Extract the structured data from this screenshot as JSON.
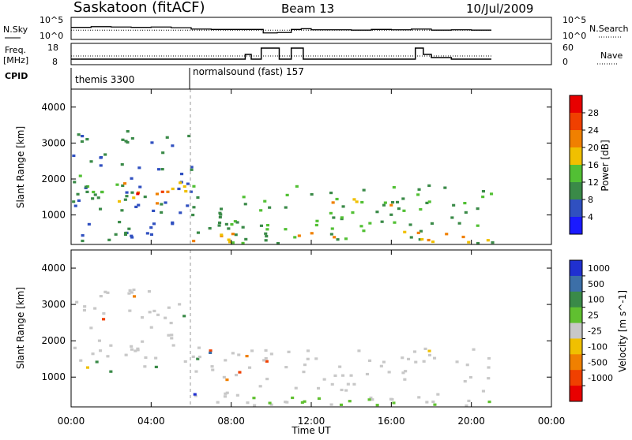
{
  "header": {
    "station": "Saskatoon (fitACF)",
    "beam": "Beam 13",
    "date": "10/Jul/2009"
  },
  "strips": {
    "nsky_label": "N.Sky",
    "nsky_ticks": [
      "10^5",
      "10^0"
    ],
    "nsearch_label": "N.Search",
    "freq_label_1": "Freq.",
    "freq_label_2": "[MHz]",
    "freq_ticks": [
      "18",
      "8"
    ],
    "nave_ticks": [
      "60",
      "0"
    ],
    "nave_label": "Nave",
    "cpid_label": "CPID",
    "cpid_segments": [
      {
        "start_hour": 0,
        "text": "themis 3300"
      },
      {
        "start_hour": 6,
        "text": "normalsound (fast) 157"
      }
    ]
  },
  "axes": {
    "ylabel": "Slant Range [km]",
    "xlabel": "Time UT",
    "y_ticks": [
      "1000",
      "2000",
      "3000",
      "4000"
    ],
    "x_ticks": [
      "00:00",
      "04:00",
      "08:00",
      "12:00",
      "16:00",
      "20:00",
      "00:00"
    ]
  },
  "colorbars": {
    "power": {
      "label": "Power [dB]",
      "ticks": [
        "4",
        "8",
        "12",
        "16",
        "20",
        "24",
        "28"
      ],
      "colors": [
        "#1a1aff",
        "#3050c0",
        "#3a8a48",
        "#52c034",
        "#f0c000",
        "#f08000",
        "#f04000",
        "#e80000"
      ]
    },
    "velocity": {
      "label": "Velocity [m s^-1]",
      "ticks": [
        "1000",
        "500",
        "100",
        "25",
        "-25",
        "-100",
        "-500",
        "-1000"
      ],
      "colors": [
        "#2030d0",
        "#3c6fa8",
        "#3a8a48",
        "#60c030",
        "#c8c8c8",
        "#f0c000",
        "#f08000",
        "#f04000",
        "#e80000"
      ]
    }
  },
  "chart_data": [
    {
      "type": "line",
      "title": "N.Sky / N.Search",
      "xlim": [
        0,
        24
      ],
      "ylim_log10": [
        0,
        5
      ],
      "series": [
        {
          "name": "N.Sky",
          "x": [
            0,
            1,
            2,
            3,
            4,
            5,
            6,
            7,
            8,
            9,
            9.6,
            10.3,
            11,
            11.5,
            12,
            13,
            14,
            15,
            16,
            17,
            18,
            19,
            20,
            21
          ],
          "y_log10": [
            2.8,
            3.0,
            2.9,
            2.8,
            2.9,
            2.7,
            2.3,
            2.2,
            2.2,
            2.2,
            1.2,
            1.3,
            2.2,
            2.4,
            2.1,
            2.1,
            2.0,
            2.2,
            2.1,
            2.3,
            2.0,
            2.1,
            2.0,
            2.0
          ]
        },
        {
          "name": "N.Search",
          "x": [
            0,
            21
          ],
          "y_log10": [
            2.0,
            2.0
          ]
        }
      ]
    },
    {
      "type": "line",
      "title": "Freq / Nave",
      "xlim": [
        0,
        24
      ],
      "ylim": [
        8,
        18
      ],
      "series": [
        {
          "name": "Freq.",
          "x": [
            0,
            8.3,
            8.7,
            9.0,
            9.5,
            10.1,
            10.4,
            11.0,
            11.6,
            17.0,
            17.2,
            17.6,
            18.0,
            19.0,
            21.0
          ],
          "y": [
            10,
            10,
            13,
            10,
            17,
            17,
            10,
            17,
            10,
            10,
            17,
            13,
            11,
            10,
            10
          ]
        },
        {
          "name": "Nave",
          "x": [
            0,
            21
          ],
          "y": [
            12,
            12
          ]
        }
      ]
    },
    {
      "type": "heatmap",
      "title": "Power",
      "xlabel": "Time UT",
      "ylabel": "Slant Range [km]",
      "xlim": [
        0,
        24
      ],
      "ylim": [
        180,
        4500
      ],
      "colorbar": "Power [dB]",
      "regions": [
        {
          "t0": 0,
          "t1": 6,
          "r0": 180,
          "r1": 3400,
          "v": 8
        },
        {
          "t0": 0,
          "t1": 3,
          "r0": 1400,
          "r1": 2300,
          "v": 12
        },
        {
          "t0": 2,
          "t1": 5.8,
          "r0": 1200,
          "r1": 1900,
          "v": 20
        },
        {
          "t0": 3,
          "t1": 5,
          "r0": 1400,
          "r1": 1800,
          "v": 26
        },
        {
          "t0": 6,
          "t1": 21,
          "r0": 180,
          "r1": 1800,
          "v": 12
        },
        {
          "t0": 6,
          "t1": 21,
          "r0": 180,
          "r1": 500,
          "v": 20
        },
        {
          "t0": 13,
          "t1": 16,
          "r0": 1200,
          "r1": 1700,
          "v": 18
        }
      ]
    },
    {
      "type": "heatmap",
      "title": "Velocity",
      "xlabel": "Time UT",
      "ylabel": "Slant Range [km]",
      "xlim": [
        0,
        24
      ],
      "ylim": [
        180,
        4500
      ],
      "colorbar": "Velocity [m s^-1]",
      "regions": [
        {
          "t0": 0,
          "t1": 6,
          "r0": 1200,
          "r1": 3400,
          "v": 0
        },
        {
          "t0": 1,
          "t1": 2,
          "r0": 800,
          "r1": 1400,
          "v": 150
        },
        {
          "t0": 6,
          "t1": 7.5,
          "r0": 1300,
          "r1": 1700,
          "v": -600
        },
        {
          "t0": 6,
          "t1": 21,
          "r0": 180,
          "r1": 1800,
          "v": 0
        },
        {
          "t0": 6,
          "t1": 21,
          "r0": 180,
          "r1": 400,
          "v": 60
        }
      ]
    }
  ]
}
